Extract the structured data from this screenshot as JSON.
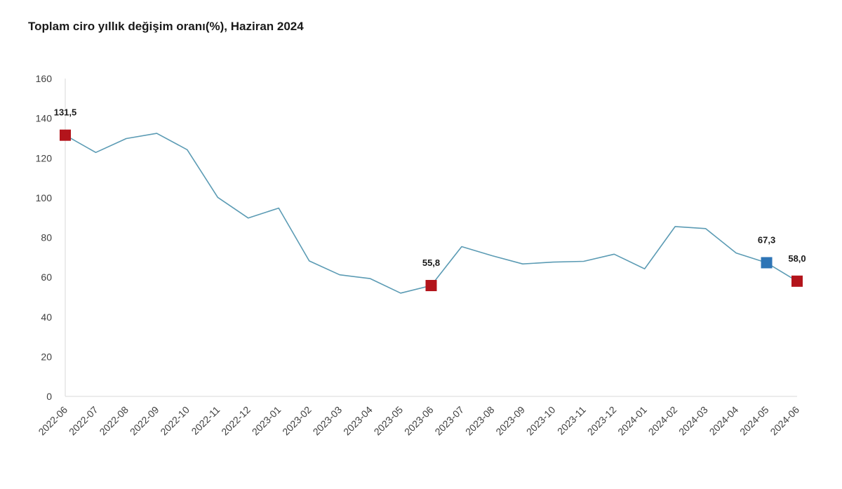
{
  "chart_data": {
    "type": "line",
    "title": "Toplam ciro yıllık değişim oranı(%), Haziran 2024",
    "xlabel": "",
    "ylabel": "",
    "ylim": [
      0,
      160
    ],
    "yticks": [
      0,
      20,
      40,
      60,
      80,
      100,
      120,
      140,
      160
    ],
    "grid": false,
    "categories": [
      "2022-06",
      "2022-07",
      "2022-08",
      "2022-09",
      "2022-10",
      "2022-11",
      "2022-12",
      "2023-01",
      "2023-02",
      "2023-03",
      "2023-04",
      "2023-05",
      "2023-06",
      "2023-07",
      "2023-08",
      "2023-09",
      "2023-10",
      "2023-11",
      "2023-12",
      "2024-01",
      "2024-02",
      "2024-03",
      "2024-04",
      "2024-05",
      "2024-06"
    ],
    "series": [
      {
        "name": "Toplam ciro yıllık değişim oranı",
        "color": "#5b9bb4",
        "values": [
          131.5,
          122.8,
          129.8,
          132.4,
          124.2,
          100.2,
          89.8,
          94.8,
          68.2,
          61.2,
          59.3,
          52.0,
          55.8,
          75.4,
          70.8,
          66.7,
          67.6,
          68.0,
          71.6,
          64.2,
          85.5,
          84.5,
          72.2,
          67.3,
          58.0
        ]
      }
    ],
    "markers": [
      {
        "index": 0,
        "label": "131,5",
        "color": "#b3141b"
      },
      {
        "index": 12,
        "label": "55,8",
        "color": "#b3141b"
      },
      {
        "index": 23,
        "label": "67,3",
        "color": "#2e75b6"
      },
      {
        "index": 24,
        "label": "58,0",
        "color": "#b3141b"
      }
    ]
  }
}
